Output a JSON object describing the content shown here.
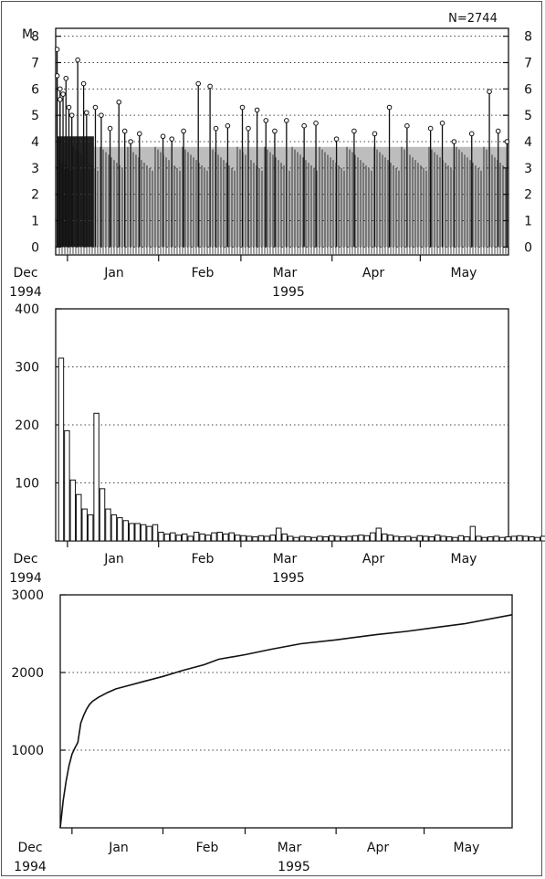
{
  "figure": {
    "month_labels": [
      "Jan",
      "Feb",
      "Mar",
      "Apr",
      "May"
    ],
    "start_label_line1": "Dec",
    "start_label_line2": "1994",
    "year_label": "1995"
  },
  "chart_data": [
    {
      "type": "bar",
      "subtype": "stem",
      "annotation": "N=2744",
      "ylabel": "M",
      "ylim": [
        -0.3,
        8.3
      ],
      "yticks": [
        0,
        1,
        2,
        3,
        4,
        5,
        6,
        7,
        8
      ],
      "right_axis_ticks": [
        0,
        1,
        2,
        3,
        4,
        5,
        6,
        7,
        8
      ],
      "grid": "horizontal dotted",
      "x_range": [
        "1994-12-28",
        "1995-05-31"
      ],
      "x_ticks": [
        "1995-01-01",
        "1995-02-01",
        "1995-03-01",
        "1995-04-01",
        "1995-05-01"
      ],
      "x": [
        "1994-12-28",
        "1994-12-28",
        "1994-12-29",
        "1994-12-29",
        "1994-12-30",
        "1994-12-31",
        "1995-01-01",
        "1995-01-02",
        "1995-01-04",
        "1995-01-06",
        "1995-01-07",
        "1995-01-10",
        "1995-01-12",
        "1995-01-15",
        "1995-01-18",
        "1995-01-20",
        "1995-01-22",
        "1995-01-25",
        "1995-02-02",
        "1995-02-05",
        "1995-02-09",
        "1995-02-14",
        "1995-02-18",
        "1995-02-20",
        "1995-02-24",
        "1995-03-01",
        "1995-03-03",
        "1995-03-06",
        "1995-03-09",
        "1995-03-12",
        "1995-03-16",
        "1995-03-22",
        "1995-03-26",
        "1995-04-02",
        "1995-04-08",
        "1995-04-15",
        "1995-04-20",
        "1995-04-26",
        "1995-05-04",
        "1995-05-08",
        "1995-05-12",
        "1995-05-18",
        "1995-05-24",
        "1995-05-27",
        "1995-05-30"
      ],
      "values": [
        7.5,
        6.5,
        6.0,
        5.6,
        5.8,
        6.4,
        5.3,
        5.0,
        7.1,
        6.2,
        5.1,
        5.3,
        5.0,
        4.5,
        5.5,
        4.4,
        4.0,
        4.3,
        4.2,
        4.1,
        4.4,
        6.2,
        6.1,
        4.5,
        4.6,
        5.3,
        4.5,
        5.2,
        4.8,
        4.4,
        4.8,
        4.6,
        4.7,
        4.1,
        4.4,
        4.3,
        5.3,
        4.6,
        4.5,
        4.7,
        4.0,
        4.3,
        5.9,
        4.4,
        4.0
      ],
      "baseline": 0,
      "background_band": [
        2.5,
        3.8
      ]
    },
    {
      "type": "bar",
      "ylim": [
        0,
        400
      ],
      "yticks": [
        100,
        200,
        300,
        400
      ],
      "grid": "horizontal dotted",
      "x_range": [
        "1994-12-28",
        "1995-05-31"
      ],
      "x_ticks": [
        "1995-01-01",
        "1995-02-01",
        "1995-03-01",
        "1995-04-01",
        "1995-05-01"
      ],
      "x_start": "1994-12-29",
      "bin_days": 2,
      "values": [
        315,
        190,
        105,
        80,
        55,
        45,
        220,
        90,
        55,
        45,
        40,
        35,
        30,
        30,
        28,
        25,
        28,
        15,
        12,
        14,
        10,
        12,
        8,
        15,
        12,
        10,
        14,
        15,
        12,
        14,
        10,
        9,
        8,
        7,
        9,
        8,
        10,
        22,
        12,
        8,
        6,
        8,
        7,
        6,
        8,
        7,
        9,
        8,
        7,
        8,
        9,
        10,
        9,
        14,
        22,
        12,
        10,
        8,
        7,
        8,
        6,
        9,
        8,
        7,
        10,
        8,
        7,
        6,
        9,
        7,
        25,
        8,
        6,
        7,
        8,
        6,
        7,
        8,
        9,
        8,
        7,
        6,
        8,
        9,
        8,
        7,
        12,
        10,
        14
      ]
    },
    {
      "type": "line",
      "ylim": [
        0,
        3000
      ],
      "yticks": [
        1000,
        2000,
        3000
      ],
      "grid": "horizontal dotted",
      "x_range": [
        "1994-12-28",
        "1995-05-31"
      ],
      "x_ticks": [
        "1995-01-01",
        "1995-02-01",
        "1995-03-01",
        "1995-04-01",
        "1995-05-01"
      ],
      "x": [
        "1994-12-28",
        "1994-12-29",
        "1994-12-30",
        "1994-12-31",
        "1995-01-01",
        "1995-01-02",
        "1995-01-03",
        "1995-01-04",
        "1995-01-05",
        "1995-01-06",
        "1995-01-07",
        "1995-01-08",
        "1995-01-10",
        "1995-01-13",
        "1995-01-16",
        "1995-01-20",
        "1995-01-25",
        "1995-02-01",
        "1995-02-08",
        "1995-02-15",
        "1995-02-20",
        "1995-03-01",
        "1995-03-10",
        "1995-03-20",
        "1995-04-01",
        "1995-04-15",
        "1995-04-25",
        "1995-05-05",
        "1995-05-15",
        "1995-05-31"
      ],
      "values": [
        0,
        350,
        600,
        800,
        950,
        1030,
        1100,
        1350,
        1450,
        1530,
        1590,
        1630,
        1680,
        1740,
        1790,
        1830,
        1880,
        1950,
        2030,
        2100,
        2170,
        2230,
        2300,
        2370,
        2420,
        2490,
        2530,
        2580,
        2630,
        2744
      ]
    }
  ]
}
